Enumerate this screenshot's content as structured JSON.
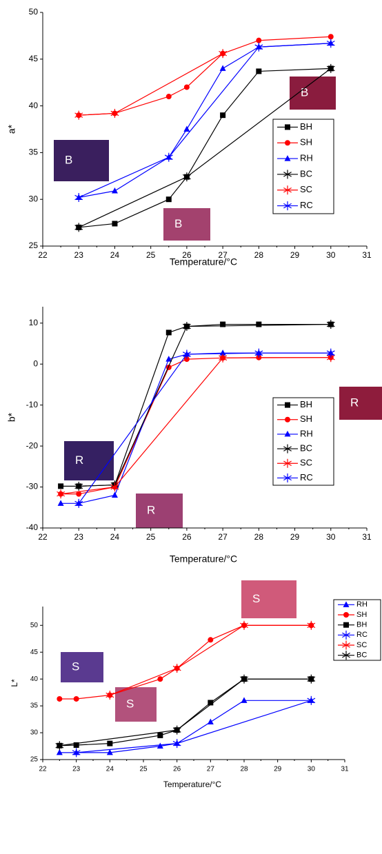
{
  "chart_data": [
    {
      "type": "line",
      "ylabel": "a*",
      "xlabel": "Temperature/°C",
      "xlim": [
        22,
        31
      ],
      "xticks": [
        22,
        23,
        24,
        25,
        26,
        27,
        28,
        29,
        30,
        31
      ],
      "ylim": [
        25,
        50
      ],
      "yticks": [
        25,
        30,
        35,
        40,
        45,
        50
      ],
      "annotations": [
        "B",
        "B",
        "B"
      ],
      "series": [
        {
          "name": "BH",
          "color": "#000000",
          "marker": "square",
          "x": [
            23,
            24,
            25.5,
            26,
            27,
            28,
            30
          ],
          "values": [
            27,
            27.4,
            30,
            32.4,
            39,
            43.7,
            44
          ]
        },
        {
          "name": "SH",
          "color": "#ff0000",
          "marker": "circle",
          "x": [
            23,
            24,
            25.5,
            26,
            27,
            28,
            30
          ],
          "values": [
            39,
            39.2,
            41,
            42,
            45.6,
            47,
            47.4
          ]
        },
        {
          "name": "RH",
          "color": "#0000ff",
          "marker": "triangle",
          "x": [
            23,
            24,
            25.5,
            26,
            27,
            28,
            30
          ],
          "values": [
            30.2,
            30.9,
            34.5,
            37.5,
            44,
            46.3,
            46.7
          ]
        },
        {
          "name": "BC",
          "color": "#000000",
          "marker": "asterisk",
          "x": [
            23,
            26,
            30
          ],
          "values": [
            27,
            32.4,
            44
          ]
        },
        {
          "name": "SC",
          "color": "#ff0000",
          "marker": "asterisk",
          "x": [
            23,
            24,
            27
          ],
          "values": [
            39,
            39.2,
            45.6
          ]
        },
        {
          "name": "RC",
          "color": "#0000ff",
          "marker": "asterisk",
          "x": [
            23,
            25.5,
            28,
            30
          ],
          "values": [
            30.2,
            34.5,
            46.3,
            46.7
          ]
        }
      ]
    },
    {
      "type": "line",
      "ylabel": "b*",
      "xlabel": "Temperature/°C",
      "xlim": [
        22,
        31
      ],
      "xticks": [
        22,
        23,
        24,
        25,
        26,
        27,
        28,
        29,
        30,
        31
      ],
      "ylim": [
        -40,
        14
      ],
      "yticks": [
        -40,
        -30,
        -20,
        -10,
        0,
        10
      ],
      "annotations": [
        "R",
        "R",
        "R"
      ],
      "series": [
        {
          "name": "BH",
          "color": "#000000",
          "marker": "square",
          "x": [
            22.5,
            23,
            24,
            25.5,
            26,
            27,
            28,
            30
          ],
          "values": [
            -29.8,
            -29.8,
            -29.5,
            7.7,
            9.2,
            9.7,
            9.7,
            9.7
          ]
        },
        {
          "name": "SH",
          "color": "#ff0000",
          "marker": "circle",
          "x": [
            22.5,
            23,
            24,
            25.5,
            26,
            27,
            28,
            30
          ],
          "values": [
            -31.7,
            -31.7,
            -30,
            -0.8,
            1.2,
            1.5,
            1.6,
            1.6
          ]
        },
        {
          "name": "RH",
          "color": "#0000ff",
          "marker": "triangle",
          "x": [
            22.5,
            23,
            24,
            25.5,
            26,
            27,
            28,
            30
          ],
          "values": [
            -34,
            -34,
            -32,
            1.2,
            2.4,
            2.7,
            2.7,
            2.7
          ]
        },
        {
          "name": "BC",
          "color": "#000000",
          "marker": "asterisk",
          "x": [
            23,
            24,
            26,
            30
          ],
          "values": [
            -29.8,
            -29.5,
            9.2,
            9.7
          ]
        },
        {
          "name": "SC",
          "color": "#ff0000",
          "marker": "asterisk",
          "x": [
            22.5,
            24,
            27,
            30
          ],
          "values": [
            -31.7,
            -30,
            1.5,
            1.6
          ]
        },
        {
          "name": "RC",
          "color": "#0000ff",
          "marker": "asterisk",
          "x": [
            23,
            26,
            28,
            30
          ],
          "values": [
            -34,
            2.4,
            2.7,
            2.7
          ]
        }
      ]
    },
    {
      "type": "line",
      "ylabel": "L*",
      "xlabel": "Temperature/°C",
      "xlim": [
        22,
        31
      ],
      "xticks": [
        22,
        23,
        24,
        25,
        26,
        27,
        28,
        29,
        30,
        31
      ],
      "ylim": [
        25,
        53.5
      ],
      "yticks": [
        25,
        30,
        35,
        40,
        45,
        50
      ],
      "annotations": [
        "S",
        "S",
        "S"
      ],
      "series": [
        {
          "name": "RH",
          "color": "#0000ff",
          "marker": "triangle",
          "x": [
            22.5,
            23,
            24,
            25.5,
            26,
            27,
            28,
            30
          ],
          "values": [
            26.3,
            26.3,
            26.3,
            27.5,
            28,
            32,
            36,
            36
          ]
        },
        {
          "name": "SH",
          "color": "#ff0000",
          "marker": "circle",
          "x": [
            22.5,
            23,
            24,
            25.5,
            26,
            27,
            28,
            30
          ],
          "values": [
            36.3,
            36.3,
            37,
            40,
            42,
            47.3,
            50,
            50
          ]
        },
        {
          "name": "BH",
          "color": "#000000",
          "marker": "square",
          "x": [
            22.5,
            23,
            24,
            25.5,
            26,
            27,
            28,
            30
          ],
          "values": [
            27.6,
            27.7,
            28,
            29.5,
            30.5,
            35.6,
            40,
            40
          ]
        },
        {
          "name": "RC",
          "color": "#0000ff",
          "marker": "asterisk",
          "x": [
            23,
            26,
            30
          ],
          "values": [
            26.3,
            28,
            36
          ]
        },
        {
          "name": "SC",
          "color": "#ff0000",
          "marker": "asterisk",
          "x": [
            24,
            26,
            28,
            30
          ],
          "values": [
            37,
            42,
            50,
            50
          ]
        },
        {
          "name": "BC",
          "color": "#000000",
          "marker": "asterisk",
          "x": [
            22.5,
            26,
            28,
            30
          ],
          "values": [
            27.6,
            30.5,
            40,
            40
          ]
        }
      ]
    }
  ]
}
